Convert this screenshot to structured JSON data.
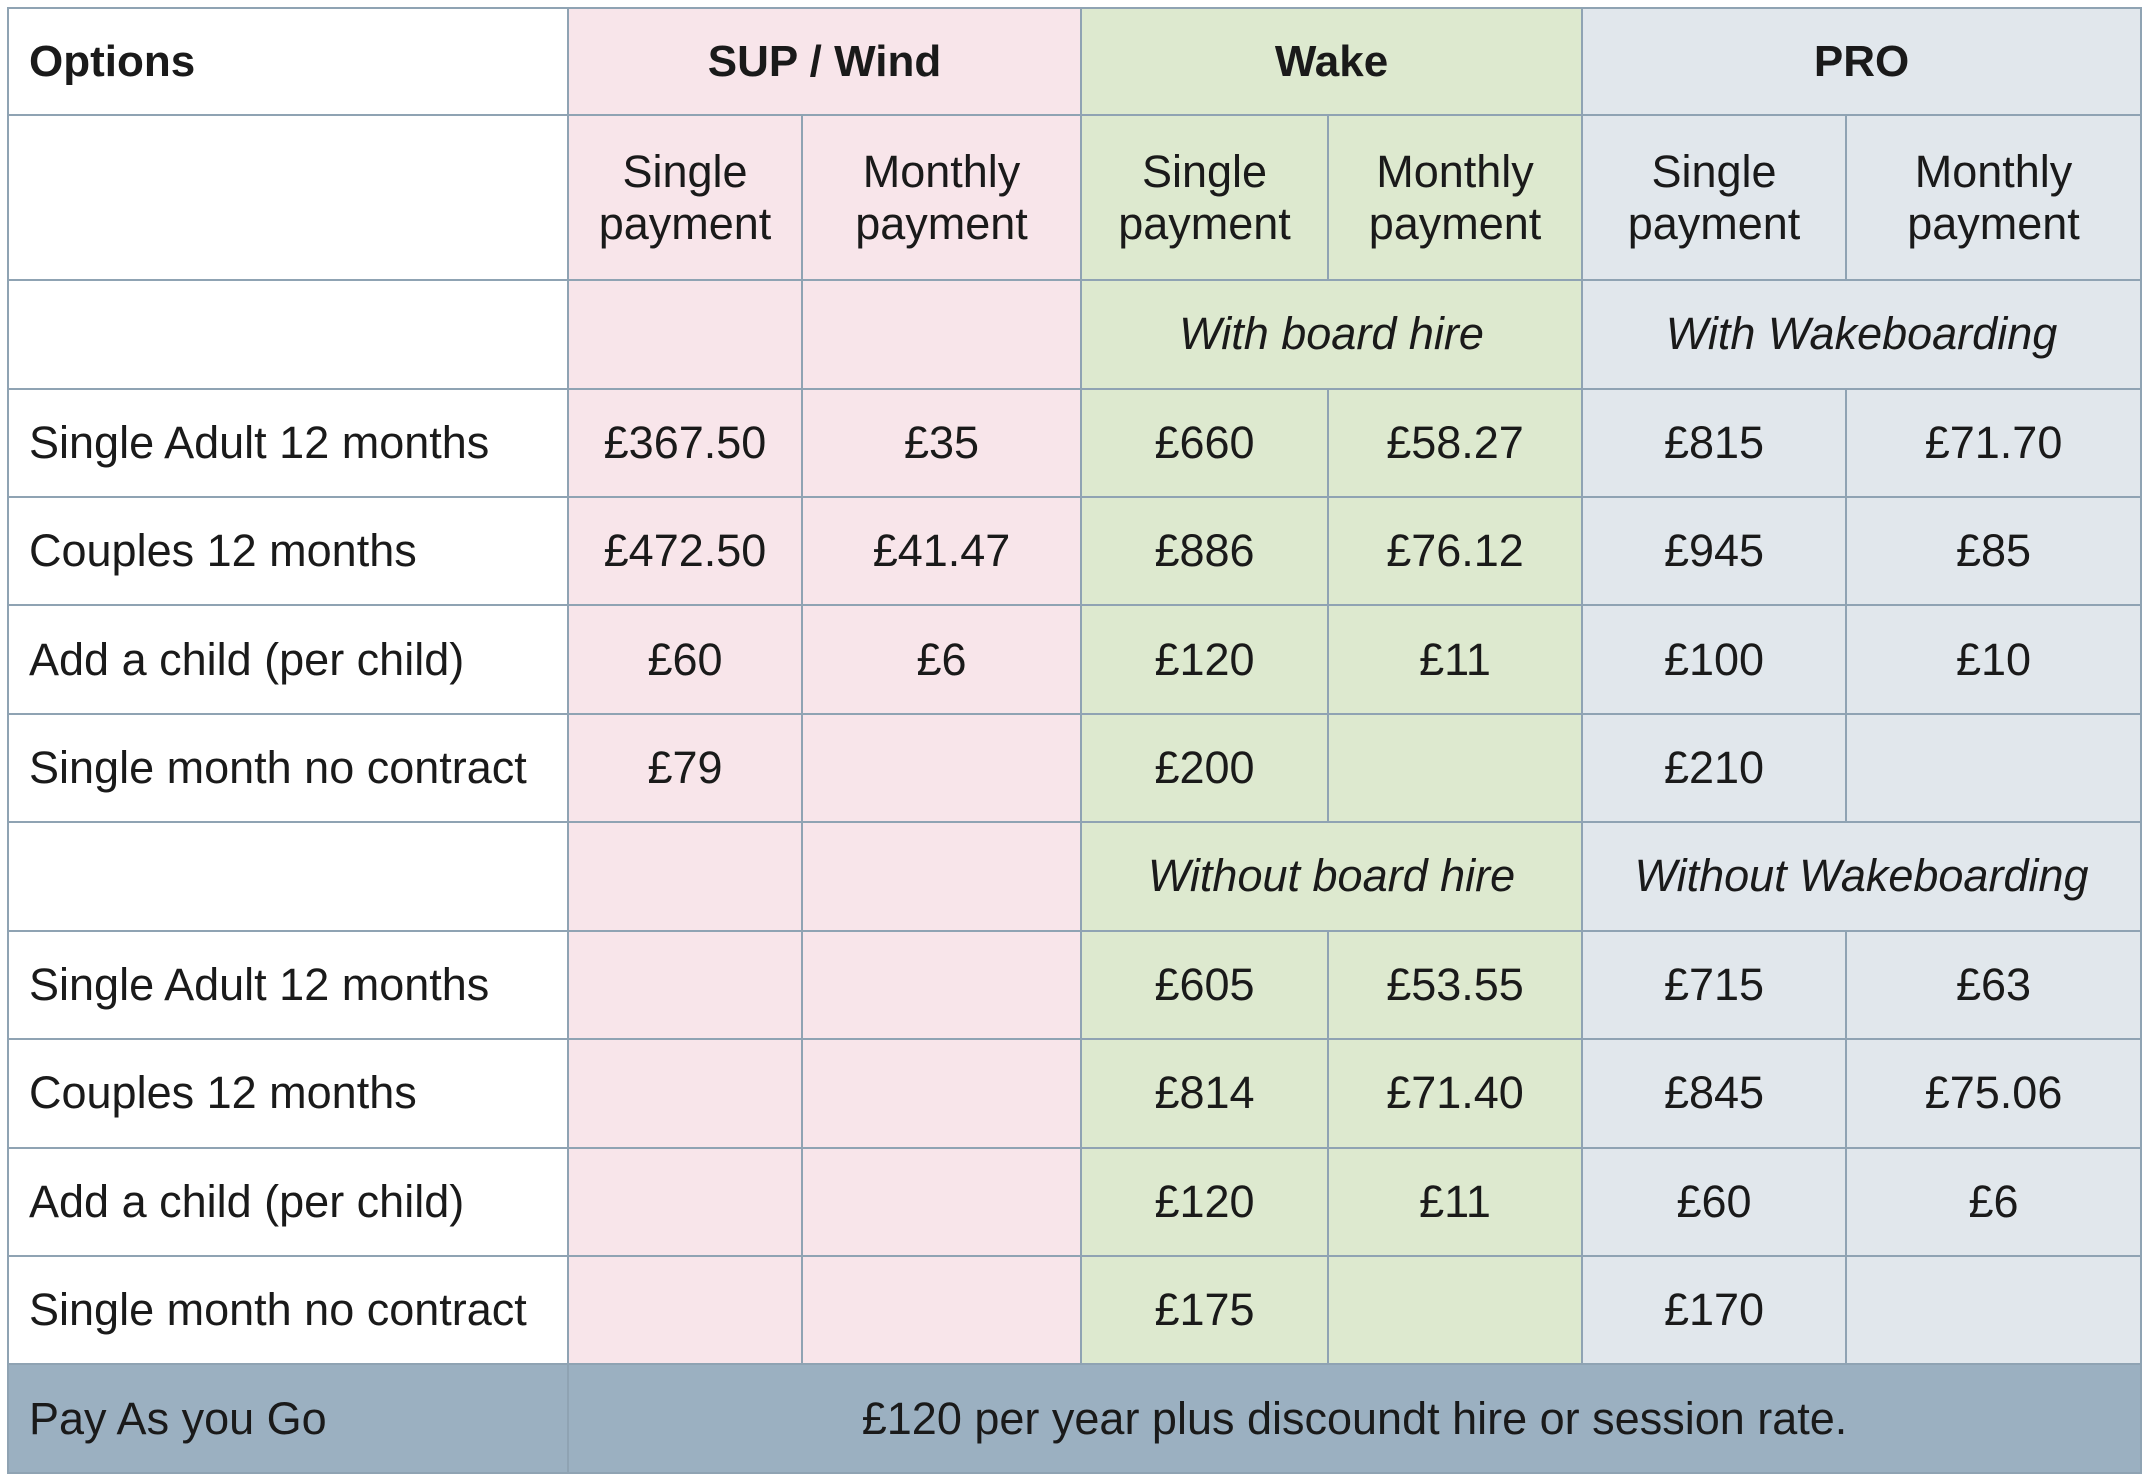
{
  "table": {
    "header": {
      "options": "Options",
      "groups": [
        "SUP / Wind",
        "Wake",
        "PRO"
      ]
    },
    "subheader": {
      "single": "Single payment",
      "monthly": "Monthly payment"
    },
    "section1": {
      "wake_note": "With board hire",
      "pro_note": "With Wakeboarding",
      "rows": [
        {
          "label": "Single Adult 12 months",
          "cells": [
            "£367.50",
            "£35",
            "£660",
            "£58.27",
            "£815",
            "£71.70"
          ]
        },
        {
          "label": "Couples 12 months",
          "cells": [
            "£472.50",
            "£41.47",
            "£886",
            "£76.12",
            "£945",
            "£85"
          ]
        },
        {
          "label": "Add a child (per child)",
          "cells": [
            "£60",
            "£6",
            "£120",
            "£11",
            "£100",
            "£10"
          ]
        },
        {
          "label": "Single month no contract",
          "cells": [
            "£79",
            "",
            "£200",
            "",
            "£210",
            ""
          ]
        }
      ]
    },
    "section2": {
      "wake_note": "Without board hire",
      "pro_note": "Without Wakeboarding",
      "rows": [
        {
          "label": "Single Adult 12 months",
          "cells": [
            "",
            "",
            "£605",
            "£53.55",
            "£715",
            "£63"
          ]
        },
        {
          "label": "Couples 12 months",
          "cells": [
            "",
            "",
            "£814",
            "£71.40",
            "£845",
            "£75.06"
          ]
        },
        {
          "label": "Add a child (per child)",
          "cells": [
            "",
            "",
            "£120",
            "£11",
            "£60",
            "£6"
          ]
        },
        {
          "label": "Single month no contract",
          "cells": [
            "",
            "",
            "£175",
            "",
            "£170",
            ""
          ]
        }
      ]
    },
    "footer": {
      "label": "Pay As you Go",
      "text": "£120 per year plus discoundt hire or session rate."
    }
  },
  "colors": {
    "sup": "#f8e5ea",
    "wake": "#dde9cf",
    "pro": "#e1e7ec",
    "payg": "#9bb0c1",
    "border": "#8fa3b3"
  }
}
